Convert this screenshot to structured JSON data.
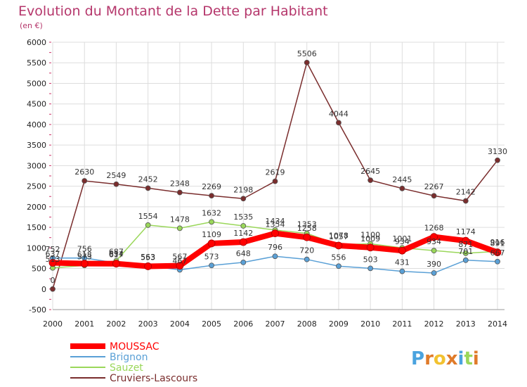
{
  "chart_data": {
    "type": "line",
    "title": "Evolution du Montant de la Dette par Habitant",
    "subtitle": "(en €)",
    "xlabel": "",
    "ylabel": "",
    "ylim": [
      -500,
      6000
    ],
    "yticks": [
      "-500",
      "0",
      "500",
      "1000",
      "1500",
      "2000",
      "2500",
      "3000",
      "3500",
      "4000",
      "4500",
      "5000",
      "5500",
      "6000"
    ],
    "x": [
      "2000",
      "2001",
      "2002",
      "2003",
      "2004",
      "2005",
      "2006",
      "2007",
      "2008",
      "2009",
      "2010",
      "2011",
      "2012",
      "2013",
      "2014"
    ],
    "grid": true,
    "legend_position": "bottom-left",
    "series": [
      {
        "name": "MOUSSAC",
        "color": "#ff0000",
        "values": [
          637,
          618,
          617,
          553,
          567,
          1109,
          1142,
          1354,
          1258,
          1057,
          1009,
          934,
          1268,
          1174,
          891
        ],
        "labels": [
          "637",
          "618",
          "617",
          "553",
          "567",
          "1109",
          "1142",
          "1354",
          "1258",
          "1057",
          "1009",
          "934",
          "1268",
          "1174",
          "891"
        ]
      },
      {
        "name": "Brignon",
        "color": "#5aa0d6",
        "values": [
          752,
          756,
          634,
          563,
          467,
          573,
          648,
          796,
          720,
          556,
          503,
          431,
          390,
          701,
          667
        ],
        "labels": [
          "752",
          "756",
          "634",
          "563",
          "467",
          "573",
          "648",
          "796",
          "720",
          "556",
          "503",
          "431",
          "390",
          "701",
          "667"
        ]
      },
      {
        "name": "Sauzet",
        "color": "#9ad75a",
        "values": [
          513,
          573,
          687,
          1554,
          1478,
          1632,
          1535,
          1434,
          1353,
          1078,
          1100,
          1001,
          934,
          871,
          916
        ],
        "labels": [
          "513",
          "573",
          "687",
          "1554",
          "1478",
          "1632",
          "1535",
          "1434",
          "1353",
          "1078",
          "1100",
          "1001",
          "934",
          "871",
          "916"
        ]
      },
      {
        "name": "Cruviers-Lascours",
        "color": "#7a2d2d",
        "values": [
          0,
          2630,
          2549,
          2452,
          2348,
          2269,
          2198,
          2619,
          5506,
          4044,
          2645,
          2445,
          2267,
          2142,
          3130
        ],
        "labels": [
          "0",
          "2630",
          "2549",
          "2452",
          "2348",
          "2269",
          "2198",
          "2619",
          "5506",
          "4044",
          "2645",
          "2445",
          "2267",
          "2142",
          "3130"
        ]
      }
    ]
  },
  "brand": {
    "name": "Proxiti",
    "letters": [
      "P",
      "r",
      "o",
      "x",
      "i",
      "t",
      "i"
    ],
    "colors": [
      "#4aa3df",
      "#e07b2a",
      "#f2c230",
      "#e07b2a",
      "#4aa3df",
      "#9ad75a",
      "#e07b2a"
    ]
  },
  "colors": {
    "title": "#b5366b",
    "grid": "#dddddd",
    "axis_tick": "#cc3366"
  }
}
